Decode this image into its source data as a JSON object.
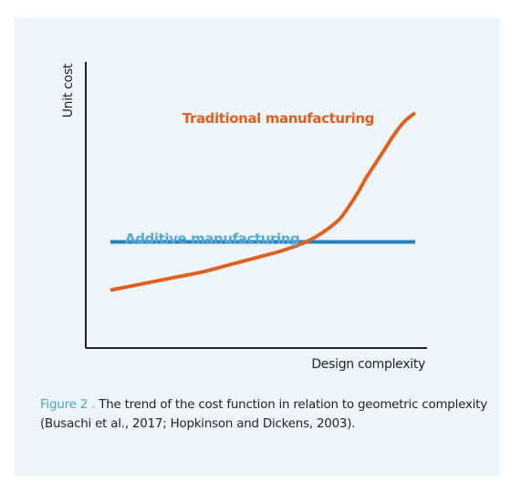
{
  "colors": {
    "background_card": "#eef5fb",
    "axis": "#222222",
    "traditional": "#e0601f",
    "additive": "#1f82c0",
    "additive_label": "#5aa9d4",
    "figure_label": "#4da3d2"
  },
  "caption": {
    "figure_label": "Figure 2 .",
    "text": " The trend of the cost function in relation to geometric complexity (Busachi et al., 2017; Hopkinson and Dickens, 2003)."
  },
  "chart_data": {
    "type": "line",
    "xlabel": "Design complexity",
    "ylabel": "Unit cost",
    "xlim": [
      0,
      100
    ],
    "ylim": [
      0,
      100
    ],
    "grid": false,
    "series": [
      {
        "name": "Traditional manufacturing",
        "color": "#e0601f",
        "x": [
          0,
          10,
          20,
          30,
          40,
          50,
          55,
          60,
          65,
          70,
          75,
          78,
          81,
          84,
          87,
          90,
          93,
          96,
          99,
          100
        ],
        "y": [
          12,
          15,
          18,
          21,
          25,
          29,
          31,
          33.5,
          36.5,
          41,
          47,
          53,
          60,
          68,
          75,
          82,
          89,
          95,
          99,
          100
        ]
      },
      {
        "name": "Additive manufacturing",
        "color": "#1f82c0",
        "x": [
          0,
          100
        ],
        "y": [
          36,
          36
        ]
      }
    ]
  }
}
